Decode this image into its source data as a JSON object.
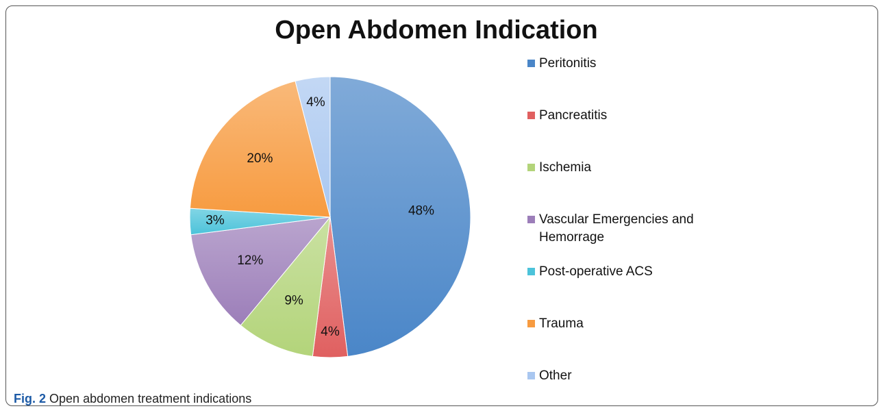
{
  "chart_data": {
    "type": "pie",
    "title": "Open Abdomen Indication",
    "categories": [
      "Peritonitis",
      "Pancreatitis",
      "Ischemia",
      "Vascular Emergencies and Hemorrage",
      "Post-operative ACS",
      "Trauma",
      "Other"
    ],
    "values": [
      48,
      4,
      9,
      12,
      3,
      20,
      4
    ],
    "value_labels": [
      "48%",
      "4%",
      "9%",
      "12%",
      "3%",
      "20%",
      "4%"
    ],
    "colors": [
      "#4a86c8",
      "#e06060",
      "#b3d47a",
      "#9c7eb9",
      "#4cc3da",
      "#f79b40",
      "#a9c7f0"
    ],
    "legend": "right"
  },
  "caption": {
    "label": "Fig. 2",
    "text": "Open abdomen treatment indications"
  }
}
